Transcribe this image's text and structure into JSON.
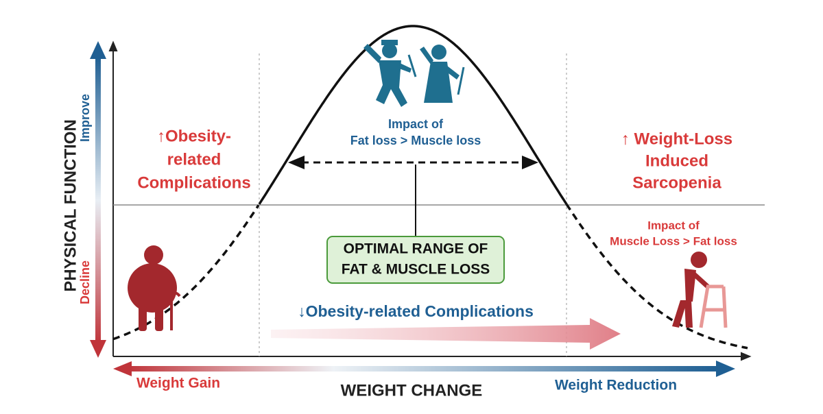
{
  "y_axis": {
    "label": "PHYSICAL FUNCTION",
    "improve": "Improve",
    "decline": "Decline"
  },
  "x_axis": {
    "label": "WEIGHT CHANGE",
    "left": "Weight Gain",
    "right": "Weight Reduction"
  },
  "left_region": {
    "lines": [
      "↑Obesity-",
      "related",
      "Complications"
    ]
  },
  "center_top": {
    "lines": [
      "Impact of",
      "Fat loss > Muscle loss"
    ]
  },
  "right_region": {
    "lines": [
      "↑ Weight-Loss",
      "Induced",
      "Sarcopenia"
    ]
  },
  "right_bottom": {
    "lines": [
      "Impact of",
      "Muscle Loss > Fat loss"
    ]
  },
  "optimal_box": {
    "lines": [
      "OPTIMAL RANGE OF",
      "FAT & MUSCLE LOSS"
    ]
  },
  "center_bottom": {
    "text": "↓Obesity-related Complications"
  }
}
